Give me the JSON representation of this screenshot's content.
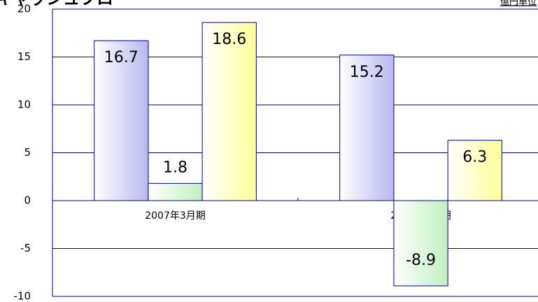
{
  "chart_data": {
    "type": "bar",
    "title": "キャッシュフロー",
    "unit_label": "億円単位",
    "categories": [
      "2007年3月期",
      "2008年3月期"
    ],
    "series": [
      {
        "color": "#b8b8f0",
        "values": [
          16.7,
          15.2
        ]
      },
      {
        "color": "#c0f0c0",
        "values": [
          1.8,
          -8.9
        ]
      },
      {
        "color": "#ffff99",
        "values": [
          18.6,
          6.3
        ]
      }
    ],
    "ylim": [
      -10,
      20
    ],
    "yticks": [
      -10,
      -5,
      0,
      5,
      10,
      15,
      20
    ],
    "grid": true
  }
}
